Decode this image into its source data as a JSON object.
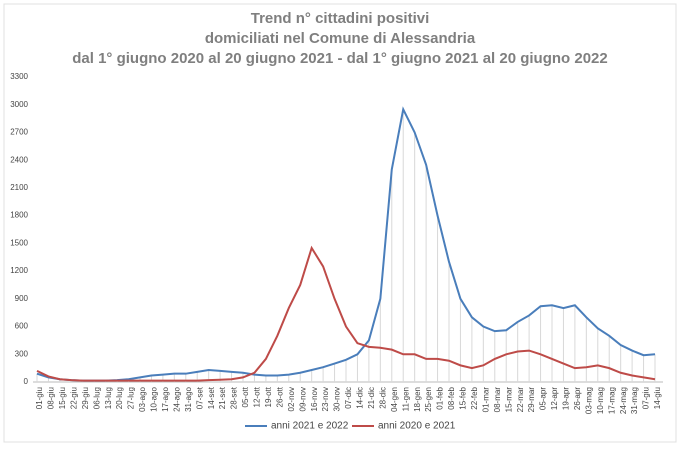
{
  "chart_data": {
    "type": "line",
    "title": [
      "Trend n° cittadini positivi",
      "domiciliati nel Comune di Alessandria",
      "dal 1° giugno 2020 al 20 giugno 2021 - dal 1° giugno 2021 al 20 giugno 2022"
    ],
    "categories": [
      "01-giu",
      "08-giu",
      "15-giu",
      "22-giu",
      "29-giu",
      "06-lug",
      "13-lug",
      "20-lug",
      "27-lug",
      "03-ago",
      "10-ago",
      "17-ago",
      "24-ago",
      "31-ago",
      "07-set",
      "14-set",
      "21-set",
      "28-set",
      "05-ott",
      "12-ott",
      "19-ott",
      "26-ott",
      "02-nov",
      "09-nov",
      "16-nov",
      "23-nov",
      "30-nov",
      "07-dic",
      "14-dic",
      "21-dic",
      "28-dic",
      "04-gen",
      "11-gen",
      "18-gen",
      "25-gen",
      "01-feb",
      "08-feb",
      "15-feb",
      "22-feb",
      "01-mar",
      "08-mar",
      "15-mar",
      "22-mar",
      "29-mar",
      "05-apr",
      "12-apr",
      "19-apr",
      "26-apr",
      "03-mag",
      "10-mag",
      "17-mag",
      "24-mag",
      "31-mag",
      "07-giu",
      "14-giu"
    ],
    "series": [
      {
        "name": "anni 2021 e 2022",
        "color": "#4a7ebb",
        "values": [
          90,
          50,
          30,
          20,
          15,
          15,
          15,
          20,
          30,
          50,
          70,
          80,
          90,
          90,
          110,
          130,
          120,
          110,
          100,
          80,
          70,
          70,
          80,
          100,
          130,
          160,
          200,
          240,
          300,
          450,
          900,
          2300,
          2950,
          2700,
          2350,
          1800,
          1300,
          900,
          700,
          600,
          550,
          560,
          650,
          720,
          820,
          830,
          800,
          830,
          700,
          580,
          500,
          400,
          340,
          290,
          300
        ]
      },
      {
        "name": "anni 2020 e 2021",
        "color": "#be4b48",
        "values": [
          120,
          60,
          30,
          20,
          15,
          15,
          15,
          15,
          15,
          15,
          15,
          15,
          15,
          15,
          15,
          20,
          25,
          30,
          50,
          100,
          250,
          500,
          800,
          1050,
          1450,
          1250,
          900,
          600,
          420,
          380,
          370,
          350,
          300,
          300,
          250,
          250,
          230,
          180,
          150,
          180,
          250,
          300,
          330,
          340,
          300,
          250,
          200,
          150,
          160,
          180,
          150,
          100,
          70,
          50,
          30
        ]
      }
    ],
    "ylim": [
      0,
      3300
    ],
    "yticks": [
      0,
      300,
      600,
      900,
      1200,
      1500,
      1800,
      2100,
      2400,
      2700,
      3000,
      3300
    ]
  }
}
